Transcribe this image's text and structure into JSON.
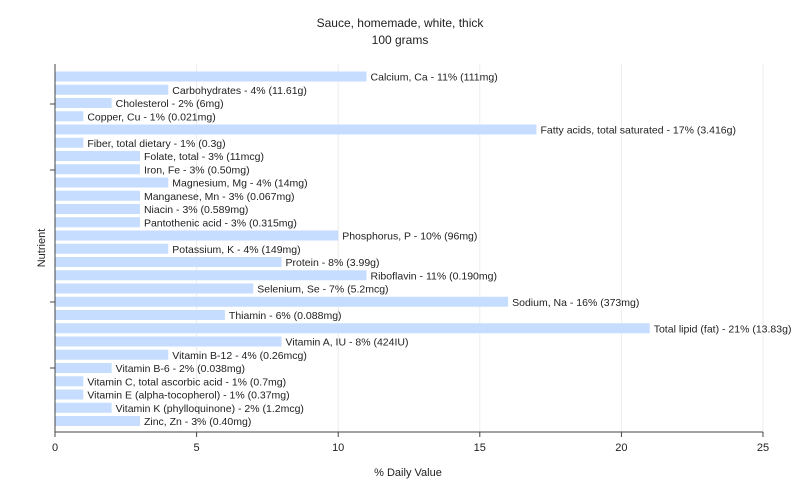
{
  "chart_data": {
    "type": "bar",
    "orientation": "horizontal",
    "title": "Sauce, homemade, white, thick",
    "subtitle": "100 grams",
    "xlabel": "% Daily Value",
    "ylabel": "Nutrient",
    "xlim": [
      0,
      25
    ],
    "xticks": [
      0,
      5,
      10,
      15,
      20,
      25
    ],
    "grid": true,
    "bar_color": "#c6ddff",
    "categories": [
      "Calcium, Ca",
      "Carbohydrates",
      "Cholesterol",
      "Copper, Cu",
      "Fatty acids, total saturated",
      "Fiber, total dietary",
      "Folate, total",
      "Iron, Fe",
      "Magnesium, Mg",
      "Manganese, Mn",
      "Niacin",
      "Pantothenic acid",
      "Phosphorus, P",
      "Potassium, K",
      "Protein",
      "Riboflavin",
      "Selenium, Se",
      "Sodium, Na",
      "Thiamin",
      "Total lipid (fat)",
      "Vitamin A, IU",
      "Vitamin B-12",
      "Vitamin B-6",
      "Vitamin C, total ascorbic acid",
      "Vitamin E (alpha-tocopherol)",
      "Vitamin K (phylloquinone)",
      "Zinc, Zn"
    ],
    "values": [
      11,
      4,
      2,
      1,
      17,
      1,
      3,
      3,
      4,
      3,
      3,
      3,
      10,
      4,
      8,
      11,
      7,
      16,
      6,
      21,
      8,
      4,
      2,
      1,
      1,
      2,
      3
    ],
    "labels": [
      "Calcium, Ca - 11% (111mg)",
      "Carbohydrates - 4% (11.61g)",
      "Cholesterol - 2% (6mg)",
      "Copper, Cu - 1% (0.021mg)",
      "Fatty acids, total saturated - 17% (3.416g)",
      "Fiber, total dietary - 1% (0.3g)",
      "Folate, total - 3% (11mcg)",
      "Iron, Fe - 3% (0.50mg)",
      "Magnesium, Mg - 4% (14mg)",
      "Manganese, Mn - 3% (0.067mg)",
      "Niacin - 3% (0.589mg)",
      "Pantothenic acid - 3% (0.315mg)",
      "Phosphorus, P - 10% (96mg)",
      "Potassium, K - 4% (149mg)",
      "Protein - 8% (3.99g)",
      "Riboflavin - 11% (0.190mg)",
      "Selenium, Se - 7% (5.2mcg)",
      "Sodium, Na - 16% (373mg)",
      "Thiamin - 6% (0.088mg)",
      "Total lipid (fat) - 21% (13.83g)",
      "Vitamin A, IU - 8% (424IU)",
      "Vitamin B-12 - 4% (0.26mcg)",
      "Vitamin B-6 - 2% (0.038mg)",
      "Vitamin C, total ascorbic acid - 1% (0.7mg)",
      "Vitamin E (alpha-tocopherol) - 1% (0.37mg)",
      "Vitamin K (phylloquinone) - 2% (1.2mcg)",
      "Zinc, Zn - 3% (0.40mg)"
    ]
  }
}
